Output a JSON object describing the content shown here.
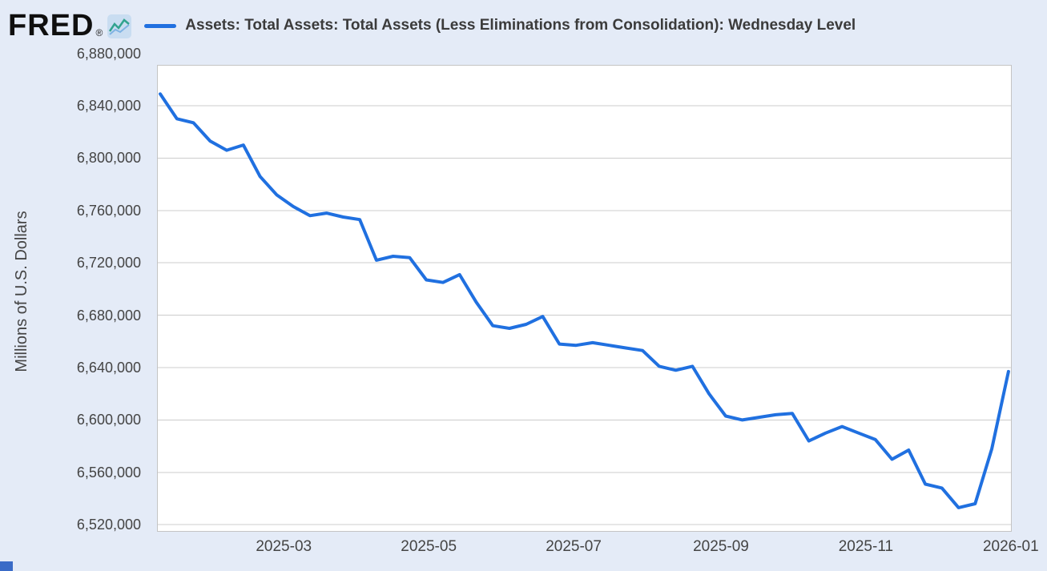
{
  "header": {
    "logo_text": "FRED",
    "logo_registered_mark": "®",
    "logo_icon": "line-chart-icon",
    "legend_label": "Assets: Total Assets: Total Assets (Less Eliminations from Consolidation): Wednesday Level"
  },
  "colors": {
    "page_background": "#e4ebf7",
    "plot_background": "#ffffff",
    "grid_line": "#cccccc",
    "plot_border": "#c4c4c4",
    "series_line": "#2070e0",
    "axis_text": "#444444",
    "title_text": "#3b3b3b",
    "logo_icon_background": "#c9ddf1",
    "logo_icon_line": "#31a38f",
    "logo_icon_line2": "#7fb3e3",
    "footer_strip": "#3a6bc7"
  },
  "y_axis": {
    "title": "Millions of U.S. Dollars",
    "tick_labels": [
      "6,880,000",
      "6,840,000",
      "6,800,000",
      "6,760,000",
      "6,720,000",
      "6,680,000",
      "6,640,000",
      "6,600,000",
      "6,560,000",
      "6,520,000"
    ]
  },
  "x_axis": {
    "ticks": [
      {
        "label": "2025-03",
        "date": "2025-03-01"
      },
      {
        "label": "2025-05",
        "date": "2025-05-01"
      },
      {
        "label": "2025-07",
        "date": "2025-07-01"
      },
      {
        "label": "2025-09",
        "date": "2025-09-01"
      },
      {
        "label": "2025-11",
        "date": "2025-11-01"
      },
      {
        "label": "2026-01",
        "date": "2026-01-01"
      }
    ]
  },
  "chart_data": {
    "type": "line",
    "title": "Assets: Total Assets: Total Assets (Less Eliminations from Consolidation): Wednesday Level",
    "xlabel": "",
    "ylabel": "Millions of U.S. Dollars",
    "ylim": [
      6520000,
      6880000
    ],
    "y_tick_step": 40000,
    "x_tick_labels": [
      "2025-03",
      "2025-05",
      "2025-07",
      "2025-09",
      "2025-11",
      "2026-01"
    ],
    "grid": "horizontal",
    "legend_position": "top",
    "series": [
      {
        "name": "Assets: Total Assets: Total Assets (Less Eliminations from Consolidation): Wednesday Level",
        "units": "Millions of U.S. Dollars",
        "dates": [
          "2025-01-08",
          "2025-01-15",
          "2025-01-22",
          "2025-01-29",
          "2025-02-05",
          "2025-02-12",
          "2025-02-19",
          "2025-02-26",
          "2025-03-05",
          "2025-03-12",
          "2025-03-19",
          "2025-03-26",
          "2025-04-02",
          "2025-04-09",
          "2025-04-16",
          "2025-04-23",
          "2025-04-30",
          "2025-05-07",
          "2025-05-14",
          "2025-05-21",
          "2025-05-28",
          "2025-06-04",
          "2025-06-11",
          "2025-06-18",
          "2025-06-25",
          "2025-07-02",
          "2025-07-09",
          "2025-07-16",
          "2025-07-23",
          "2025-07-30",
          "2025-08-06",
          "2025-08-13",
          "2025-08-20",
          "2025-08-27",
          "2025-09-03",
          "2025-09-10",
          "2025-09-17",
          "2025-09-24",
          "2025-10-01",
          "2025-10-08",
          "2025-10-15",
          "2025-10-22",
          "2025-10-29",
          "2025-11-05",
          "2025-11-12",
          "2025-11-19",
          "2025-11-26",
          "2025-12-03",
          "2025-12-10",
          "2025-12-17",
          "2025-12-24",
          "2025-12-31"
        ],
        "values": [
          6849000,
          6830000,
          6827000,
          6813000,
          6806000,
          6810000,
          6786000,
          6772000,
          6763000,
          6756000,
          6758000,
          6755000,
          6753000,
          6722000,
          6725000,
          6724000,
          6707000,
          6705000,
          6711000,
          6690000,
          6672000,
          6670000,
          6673000,
          6679000,
          6658000,
          6657000,
          6659000,
          6657000,
          6655000,
          6653000,
          6641000,
          6638000,
          6641000,
          6620000,
          6603000,
          6600000,
          6602000,
          6604000,
          6605000,
          6584000,
          6590000,
          6595000,
          6590000,
          6585000,
          6570000,
          6577000,
          6551000,
          6548000,
          6533000,
          6536000,
          6578000,
          6637000
        ]
      }
    ]
  }
}
